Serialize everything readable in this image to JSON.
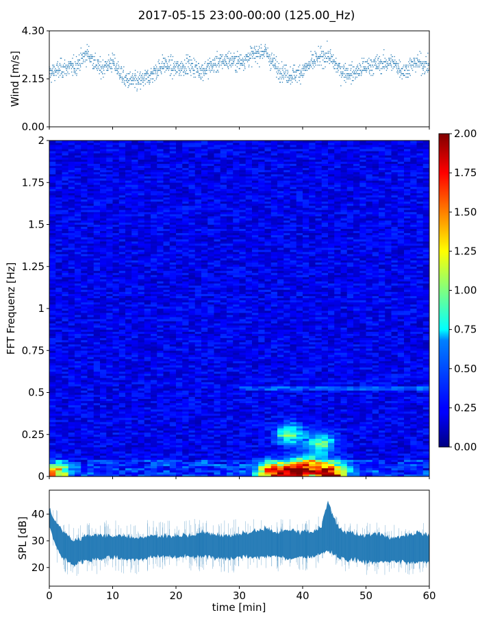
{
  "title": "2017-05-15 23:00-00:00 (125.00_Hz)",
  "chart_data": [
    {
      "type": "scatter",
      "panel": "wind",
      "ylabel": "Wind [m/s]",
      "xlabel": "",
      "ylim": [
        0,
        4.3
      ],
      "xlim": [
        0,
        60
      ],
      "yticks": [
        0,
        2.15,
        4.3
      ],
      "ytick_labels": [
        "0.00",
        "2.15",
        "4.30"
      ],
      "xticks": [
        0,
        10,
        20,
        30,
        40,
        50,
        60
      ],
      "color": "#1f77b4",
      "trend": {
        "x": [
          0,
          2,
          4,
          6,
          8,
          10,
          12,
          14,
          16,
          18,
          20,
          22,
          24,
          26,
          28,
          30,
          32,
          34,
          36,
          38,
          40,
          42,
          44,
          46,
          48,
          50,
          52,
          54,
          56,
          58,
          60
        ],
        "y": [
          2.4,
          2.6,
          2.7,
          3.3,
          2.6,
          2.9,
          2.1,
          2.0,
          2.3,
          2.8,
          2.6,
          2.8,
          2.5,
          2.8,
          3.0,
          2.9,
          3.2,
          3.4,
          2.6,
          2.3,
          2.5,
          3.0,
          3.2,
          2.5,
          2.4,
          2.7,
          2.8,
          2.9,
          2.5,
          2.9,
          2.7
        ]
      }
    },
    {
      "type": "heatmap",
      "panel": "spectrogram",
      "ylabel": "FFT Frequenz [Hz]",
      "xlabel": "",
      "ylim": [
        0,
        2
      ],
      "xlim": [
        0,
        60
      ],
      "yticks": [
        0,
        0.25,
        0.5,
        0.75,
        1,
        1.25,
        1.5,
        1.75,
        2
      ],
      "ytick_labels": [
        "0",
        "0.25",
        "0.5",
        "0.75",
        "1",
        "1.25",
        "1.5",
        "1.75",
        "2"
      ],
      "xticks": [
        0,
        10,
        20,
        30,
        40,
        50,
        60
      ],
      "colorscale": "jet",
      "colorbar": {
        "range": [
          0,
          2
        ],
        "ticks": [
          0,
          0.25,
          0.5,
          0.75,
          1.0,
          1.25,
          1.5,
          1.75,
          2.0
        ],
        "tick_labels": [
          "0.00",
          "0.25",
          "0.50",
          "0.75",
          "1.00",
          "1.25",
          "1.50",
          "1.75",
          "2.00"
        ]
      },
      "background_level": 0.22,
      "hotspots": [
        {
          "t": 38.5,
          "f": 0.02,
          "level": 1.8
        },
        {
          "t": 44.5,
          "f": 0.02,
          "level": 2.0
        },
        {
          "t": 41.0,
          "f": 0.06,
          "level": 1.4
        },
        {
          "t": 35.0,
          "f": 0.03,
          "level": 1.5
        },
        {
          "t": 1.0,
          "f": 0.02,
          "level": 1.2
        },
        {
          "t": 38.0,
          "f": 0.25,
          "level": 0.9
        },
        {
          "t": 43.0,
          "f": 0.2,
          "level": 0.8
        }
      ]
    },
    {
      "type": "area",
      "panel": "spl",
      "ylabel": "SPL [dB]",
      "xlabel": "time [min]",
      "ylim": [
        13,
        49
      ],
      "xlim": [
        0,
        60
      ],
      "yticks": [
        20,
        30,
        40
      ],
      "ytick_labels": [
        "20",
        "30",
        "40"
      ],
      "xticks": [
        0,
        10,
        20,
        30,
        40,
        50,
        60
      ],
      "xtick_labels": [
        "0",
        "10",
        "20",
        "30",
        "40",
        "50",
        "60"
      ],
      "color": "#1f77b4",
      "series": {
        "x": [
          0,
          1,
          2,
          3,
          4,
          5,
          6,
          8,
          10,
          12,
          14,
          16,
          18,
          20,
          22,
          24,
          26,
          28,
          30,
          32,
          34,
          36,
          38,
          40,
          42,
          43,
          44,
          45,
          46,
          48,
          50,
          52,
          54,
          56,
          58,
          60
        ],
        "lower": [
          36,
          28,
          24,
          22,
          21,
          22,
          23,
          23,
          24,
          23,
          23,
          24,
          24,
          24,
          24,
          24,
          24,
          23,
          24,
          24,
          24,
          24,
          23,
          24,
          24,
          25,
          26,
          25,
          23,
          23,
          22,
          22,
          22,
          22,
          22,
          22
        ],
        "upper": [
          42,
          37,
          34,
          32,
          30,
          31,
          32,
          32,
          32,
          32,
          31,
          32,
          32,
          32,
          32,
          33,
          33,
          32,
          33,
          33,
          35,
          33,
          34,
          33,
          34,
          36,
          45,
          38,
          34,
          33,
          32,
          33,
          31,
          32,
          33,
          32
        ]
      }
    }
  ]
}
